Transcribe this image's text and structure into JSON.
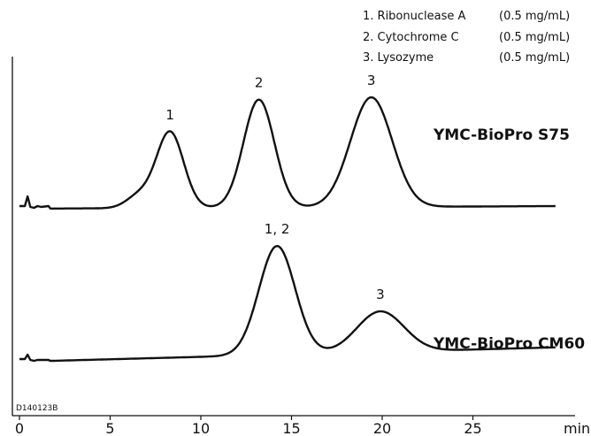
{
  "chart_data": {
    "type": "line",
    "xlabel": "min",
    "xlim": [
      0,
      30
    ],
    "x_ticks": [
      "0",
      "5",
      "10",
      "15",
      "20",
      "25"
    ],
    "legend": {
      "placement": "top-right",
      "entries": [
        {
          "name": "1. Ribonuclease A",
          "conc": "(0.5 mg/mL)"
        },
        {
          "name": "2. Cytochrome C",
          "conc": "(0.5 mg/mL)"
        },
        {
          "name": "3. Lysozyme",
          "conc": "(0.5 mg/mL)"
        }
      ]
    },
    "code": "D140123B",
    "series": [
      {
        "name": "YMC-BioPro S75",
        "baseline": 0,
        "noise": [
          {
            "x": 0.0,
            "y": 3
          },
          {
            "x": 0.3,
            "y": 3
          },
          {
            "x": 0.45,
            "y": 14
          },
          {
            "x": 0.6,
            "y": 2
          },
          {
            "x": 0.8,
            "y": 1
          },
          {
            "x": 1.0,
            "y": 3
          },
          {
            "x": 1.2,
            "y": 2
          },
          {
            "x": 1.6,
            "y": 3
          }
        ],
        "peaks": [
          {
            "label": "1",
            "x": 8.3,
            "height": 86
          },
          {
            "label": "2",
            "x": 13.2,
            "height": 122
          },
          {
            "label": "3",
            "x": 19.4,
            "height": 124
          }
        ],
        "shoulder": {
          "x": 6.6,
          "height": 14
        }
      },
      {
        "name": "YMC-BioPro CM60",
        "baseline": 0,
        "noise": [
          {
            "x": 0.0,
            "y": 3
          },
          {
            "x": 0.3,
            "y": 3
          },
          {
            "x": 0.45,
            "y": 8
          },
          {
            "x": 0.6,
            "y": 2
          },
          {
            "x": 0.8,
            "y": 1
          },
          {
            "x": 1.0,
            "y": 2
          },
          {
            "x": 1.6,
            "y": 2
          }
        ],
        "peaks": [
          {
            "label": "1, 2",
            "x": 14.2,
            "height": 123
          },
          {
            "label": "3",
            "x": 19.9,
            "height": 46
          }
        ]
      }
    ]
  }
}
